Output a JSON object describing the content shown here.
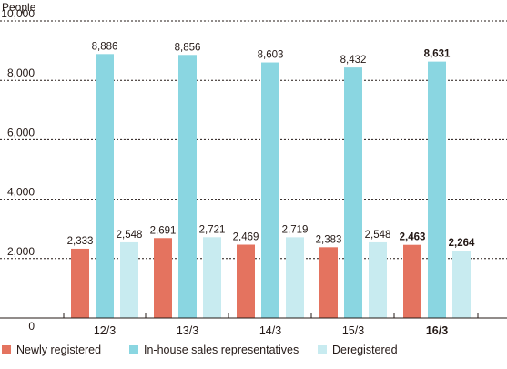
{
  "chart_data": {
    "type": "bar",
    "ylabel": "People",
    "ylim": [
      0,
      10000
    ],
    "yticks": [
      "0",
      "2,000",
      "4,000",
      "6,000",
      "8,000",
      "10,000"
    ],
    "ytick_values": [
      0,
      2000,
      4000,
      6000,
      8000,
      10000
    ],
    "grid": true,
    "legend_position": "bottom",
    "categories": [
      "12/3",
      "13/3",
      "14/3",
      "15/3",
      "16/3"
    ],
    "highlight_category": "16/3",
    "series": [
      {
        "name": "Newly registered",
        "color": "#e4735f",
        "values": [
          2333,
          2691,
          2469,
          2383,
          2463
        ],
        "labels": [
          "2,333",
          "2,691",
          "2,469",
          "2,383",
          "2,463"
        ]
      },
      {
        "name": "In-house sales representatives",
        "color": "#8ad6e1",
        "values": [
          8886,
          8856,
          8603,
          8432,
          8631
        ],
        "labels": [
          "8,886",
          "8,856",
          "8,603",
          "8,432",
          "8,631"
        ]
      },
      {
        "name": "Deregistered",
        "color": "#c8ebf0",
        "values": [
          2548,
          2721,
          2719,
          2548,
          2264
        ],
        "labels": [
          "2,548",
          "2,721",
          "2,719",
          "2,548",
          "2,264"
        ]
      }
    ]
  }
}
